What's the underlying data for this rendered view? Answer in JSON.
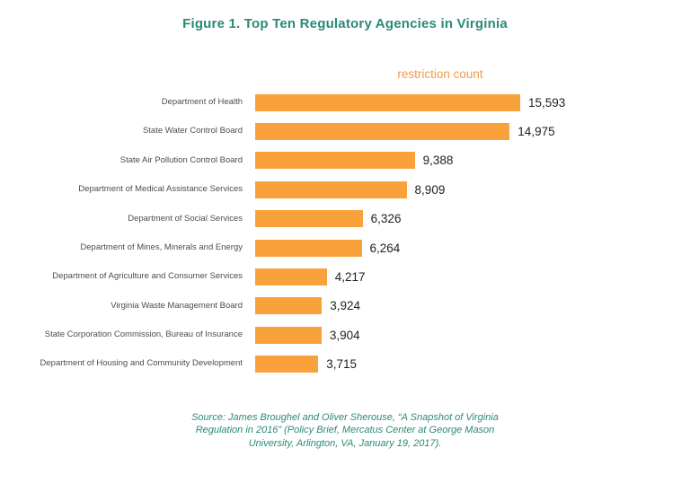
{
  "title": "Figure 1. Top Ten Regulatory Agencies in Virginia",
  "chart_data": {
    "type": "bar",
    "orientation": "horizontal",
    "title": "Figure 1. Top Ten Regulatory Agencies in Virginia",
    "value_axis_label": "restriction count",
    "xlabel": "restriction count",
    "ylabel": "",
    "xlim": [
      0,
      16000
    ],
    "grid": false,
    "legend_position": "none",
    "bar_color": "#f9a23c",
    "categories": [
      "Department of Health",
      "State Water Control Board",
      "State Air Pollution Control Board",
      "Department of Medical Assistance Services",
      "Department of Social Services",
      "Department of Mines, Minerals and Energy",
      "Department of Agriculture and Consumer Services",
      "Virginia Waste Management Board",
      "State Corporation Commission, Bureau of Insurance",
      "Department of Housing and Community Development"
    ],
    "values": [
      15593,
      14975,
      9388,
      8909,
      6326,
      6264,
      4217,
      3924,
      3904,
      3715
    ],
    "value_labels": [
      "15,593",
      "14,975",
      "9,388",
      "8,909",
      "6,326",
      "6,264",
      "4,217",
      "3,924",
      "3,904",
      "3,715"
    ]
  },
  "source": {
    "lines": [
      "Source: James Broughel and Oliver Sherouse, “A Snapshot of Virginia",
      "Regulation in 2016” (Policy Brief, Mercatus Center at George Mason",
      "University, Arlington, VA, January 19, 2017)."
    ]
  },
  "colors": {
    "bar": "#f9a23c",
    "title": "#2a8a76",
    "source_text": "#2a8a76",
    "category_label": "#4d4d4d",
    "value_label_text": "#1f1f1f"
  }
}
